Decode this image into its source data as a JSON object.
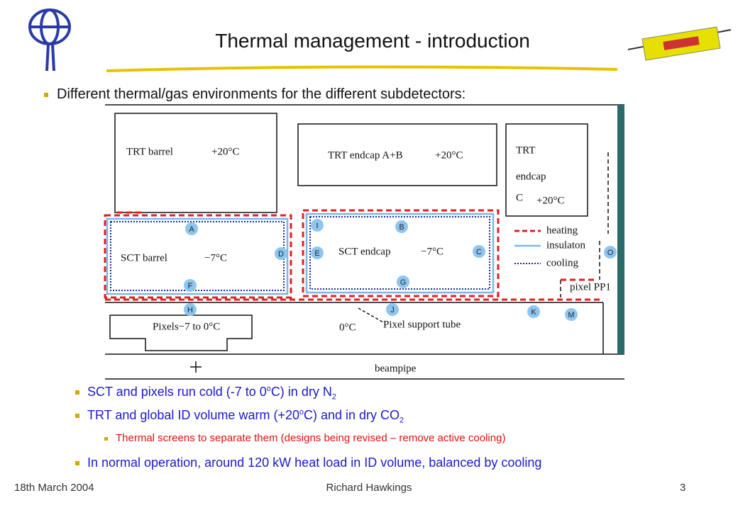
{
  "header": {
    "title": "Thermal management - introduction"
  },
  "bullets": [
    "Different thermal/gas environments for the different subdetectors:"
  ],
  "diagram": {
    "trt_barrel": {
      "name": "TRT barrel",
      "temp": "+20°C"
    },
    "trt_endcap_ab": {
      "name": "TRT endcap A+B",
      "temp": "+20°C"
    },
    "trt_endcap_c": {
      "lines": [
        "TRT",
        "endcap",
        "C"
      ],
      "temp": "+20°C"
    },
    "sct_barrel": {
      "name": "SCT barrel",
      "temp": "−7°C"
    },
    "sct_endcap": {
      "name": "SCT endcap",
      "temp": "−7°C"
    },
    "pixels": "Pixels−7 to 0°C",
    "support_temp": "0°C",
    "support_tube": "Pixel support tube",
    "pixel_pp1": "pixel PP1",
    "beampipe": "beampipe",
    "legend": [
      "heating",
      "insulaton",
      "cooling"
    ],
    "points": [
      "A",
      "D",
      "F",
      "H",
      "I",
      "B",
      "E",
      "C",
      "G",
      "J",
      "K",
      "M",
      "O"
    ]
  },
  "sub_bullets": [
    [
      "SCT and pixels run cold (-7 to 0",
      "o",
      "C) in dry N",
      "2"
    ],
    [
      "TRT and global ID volume warm (+20",
      "o",
      "C) and in dry CO",
      "2"
    ],
    [
      "Thermal screens to separate them (designs being revised – remove active cooling)"
    ],
    [
      "In normal operation, around 120 kW heat load in ID volume, balanced by cooling"
    ]
  ],
  "footer": {
    "date": "18th March 2004",
    "author": "Richard Hawkings",
    "page": "3"
  }
}
